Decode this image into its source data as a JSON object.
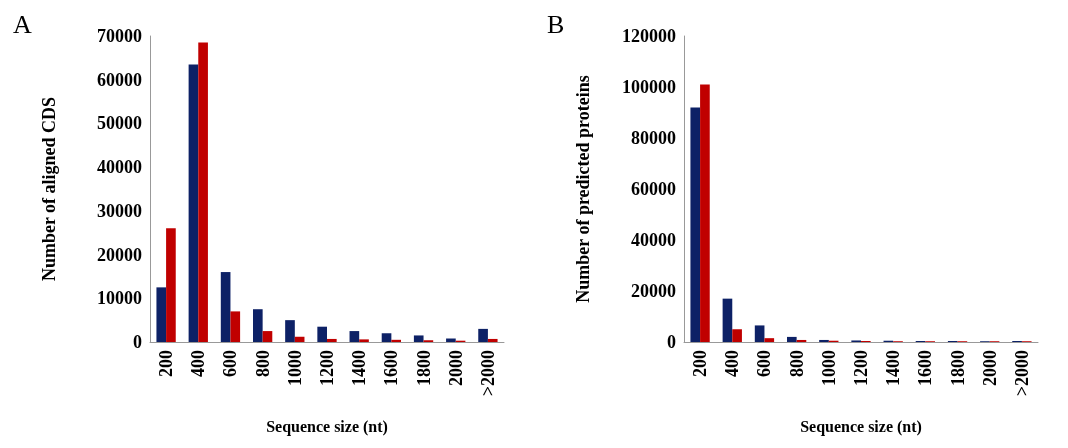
{
  "chart_data": [
    {
      "type": "bar",
      "title": "A",
      "xlabel": "Sequence size (nt)",
      "ylabel": "Number of aligned CDS",
      "categories": [
        "200",
        "400",
        "600",
        "800",
        "1000",
        "1200",
        "1400",
        "1600",
        "1800",
        "2000",
        ">2000"
      ],
      "series": [
        {
          "color": "#0d2166",
          "values": [
            12500,
            63500,
            16000,
            7500,
            5000,
            3500,
            2500,
            2000,
            1500,
            800,
            3000
          ]
        },
        {
          "color": "#c00000",
          "values": [
            26000,
            68500,
            7000,
            2500,
            1200,
            700,
            600,
            500,
            400,
            300,
            700
          ]
        }
      ],
      "ylim": [
        0,
        70000
      ],
      "yticks": [
        0,
        10000,
        20000,
        30000,
        40000,
        50000,
        60000,
        70000
      ],
      "grid": false
    },
    {
      "type": "bar",
      "title": "B",
      "xlabel": "Sequence size (nt)",
      "ylabel": "Number of predicted proteins",
      "categories": [
        "200",
        "400",
        "600",
        "800",
        "1000",
        "1200",
        "1400",
        "1600",
        "1800",
        "2000",
        ">2000"
      ],
      "series": [
        {
          "color": "#0d2166",
          "values": [
            92000,
            17000,
            6500,
            2000,
            800,
            600,
            500,
            400,
            400,
            300,
            400
          ]
        },
        {
          "color": "#c00000",
          "values": [
            101000,
            5000,
            1500,
            800,
            500,
            400,
            300,
            300,
            300,
            300,
            300
          ]
        }
      ],
      "ylim": [
        0,
        120000
      ],
      "yticks": [
        0,
        20000,
        40000,
        60000,
        80000,
        100000,
        120000
      ],
      "grid": false
    }
  ]
}
